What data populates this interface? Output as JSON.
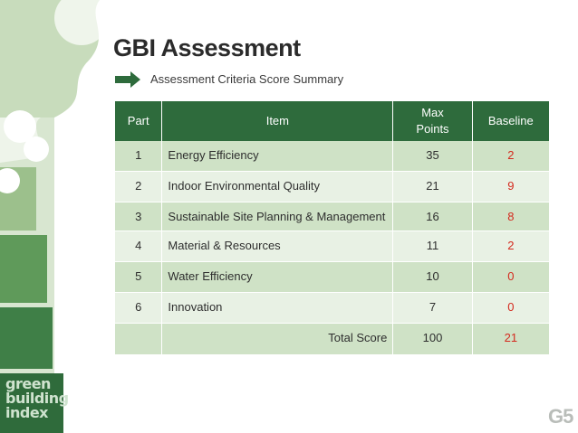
{
  "slide": {
    "title": "GBI Assessment",
    "subtitle": "Assessment Criteria Score Summary",
    "page_mark": "G5"
  },
  "logo": {
    "lines": [
      "green",
      "building",
      "index"
    ]
  },
  "table": {
    "headers": {
      "part": "Part",
      "item": "Item",
      "max_points": "Max Points",
      "baseline": "Baseline"
    },
    "rows": [
      {
        "part": "1",
        "item": "Energy Efficiency",
        "max": "35",
        "baseline": "2"
      },
      {
        "part": "2",
        "item": "Indoor Environmental Quality",
        "max": "21",
        "baseline": "9"
      },
      {
        "part": "3",
        "item": "Sustainable Site Planning & Management",
        "max": "16",
        "baseline": "8"
      },
      {
        "part": "4",
        "item": "Material & Resources",
        "max": "11",
        "baseline": "2"
      },
      {
        "part": "5",
        "item": "Water Efficiency",
        "max": "10",
        "baseline": "0"
      },
      {
        "part": "6",
        "item": "Innovation",
        "max": "7",
        "baseline": "0"
      }
    ],
    "total": {
      "label": "Total Score",
      "max": "100",
      "baseline": "21"
    }
  },
  "colors": {
    "header_bg": "#2e6b3c",
    "row_odd": "#cfe2c6",
    "row_even": "#e8f1e4",
    "baseline_text": "#d42a1e",
    "deco_dark": "#2f6b3b",
    "deco_light": "#bcd3b0"
  }
}
